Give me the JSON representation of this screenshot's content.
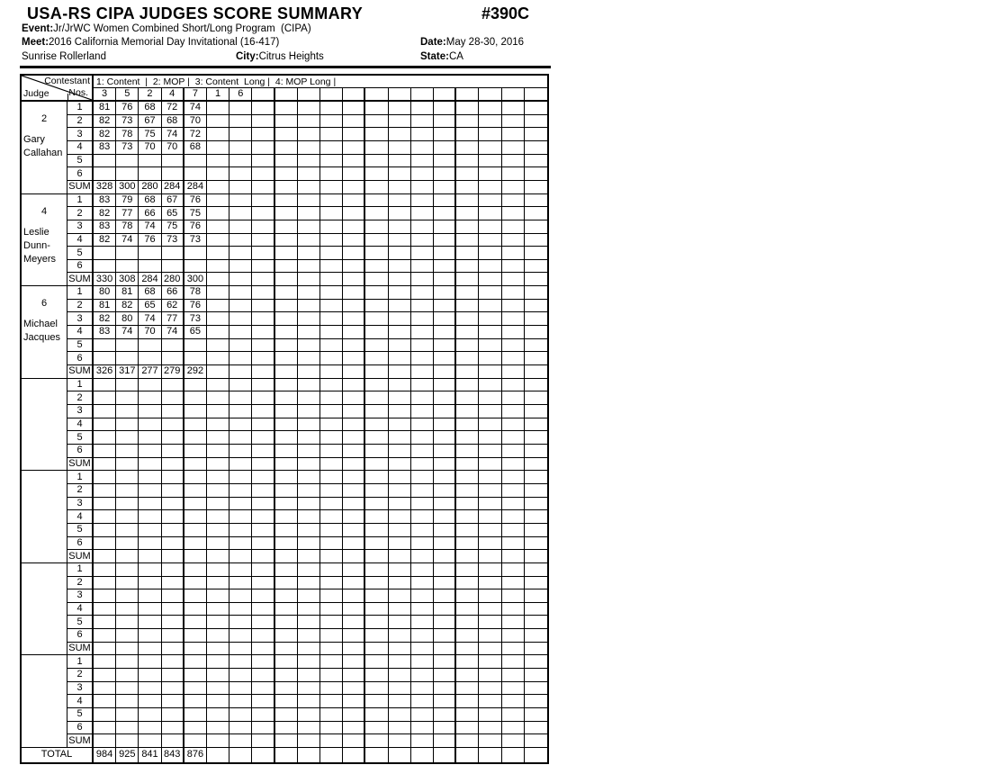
{
  "header": {
    "title": "USA-RS CIPA JUDGES SCORE SUMMARY",
    "doc_number": "#390C",
    "event_label": "Event:",
    "event_value": "Jr/JrWC Women Combined Short/Long Program  (CIPA)",
    "meet_label": "Meet:",
    "meet_value": "2016 California Memorial Day Invitational (16-417)",
    "date_label": "Date:",
    "date_value": "May 28-30, 2016",
    "venue": "Sunrise Rollerland",
    "city_label": "City:",
    "city_value": "Citrus Heights",
    "state_label": "State:",
    "state_value": "CA"
  },
  "table": {
    "corner": {
      "top_label": "Contestant",
      "mid_label": "Nos.",
      "bottom_label": "Judge"
    },
    "legend": "1: Content  |  2: MOP |  3: Content  Long |  4: MOP Long |",
    "contestant_nos": [
      "3",
      "5",
      "2",
      "4",
      "7",
      "1",
      "6",
      "",
      "",
      "",
      "",
      "",
      "",
      "",
      "",
      "",
      "",
      "",
      "",
      ""
    ],
    "row_labels": [
      "1",
      "2",
      "3",
      "4",
      "5",
      "6"
    ],
    "sum_label": "SUM",
    "total_label": "TOTAL",
    "judges": [
      {
        "number": "2",
        "name": "Gary Callahan",
        "rows": [
          [
            81,
            76,
            68,
            72,
            74
          ],
          [
            82,
            73,
            67,
            68,
            70
          ],
          [
            82,
            78,
            75,
            74,
            72
          ],
          [
            83,
            73,
            70,
            70,
            68
          ],
          [],
          []
        ],
        "sum": [
          328,
          300,
          280,
          284,
          284
        ]
      },
      {
        "number": "4",
        "name": "Leslie Dunn-Meyers",
        "rows": [
          [
            83,
            79,
            68,
            67,
            76
          ],
          [
            82,
            77,
            66,
            65,
            75
          ],
          [
            83,
            78,
            74,
            75,
            76
          ],
          [
            82,
            74,
            76,
            73,
            73
          ],
          [],
          []
        ],
        "sum": [
          330,
          308,
          284,
          280,
          300
        ]
      },
      {
        "number": "6",
        "name": "Michael Jacques",
        "rows": [
          [
            80,
            81,
            68,
            66,
            78
          ],
          [
            81,
            82,
            65,
            62,
            76
          ],
          [
            82,
            80,
            74,
            77,
            73
          ],
          [
            83,
            74,
            70,
            74,
            65
          ],
          [],
          []
        ],
        "sum": [
          326,
          317,
          277,
          279,
          292
        ]
      },
      {
        "number": "",
        "name": "",
        "rows": [
          [],
          [],
          [],
          [],
          [],
          []
        ],
        "sum": []
      },
      {
        "number": "",
        "name": "",
        "rows": [
          [],
          [],
          [],
          [],
          [],
          []
        ],
        "sum": []
      },
      {
        "number": "",
        "name": "",
        "rows": [
          [],
          [],
          [],
          [],
          [],
          []
        ],
        "sum": []
      },
      {
        "number": "",
        "name": "",
        "rows": [
          [],
          [],
          [],
          [],
          [],
          []
        ],
        "sum": []
      }
    ],
    "totals": [
      984,
      925,
      841,
      843,
      876
    ]
  },
  "colors": {
    "ink": "#000000",
    "paper": "#ffffff"
  }
}
